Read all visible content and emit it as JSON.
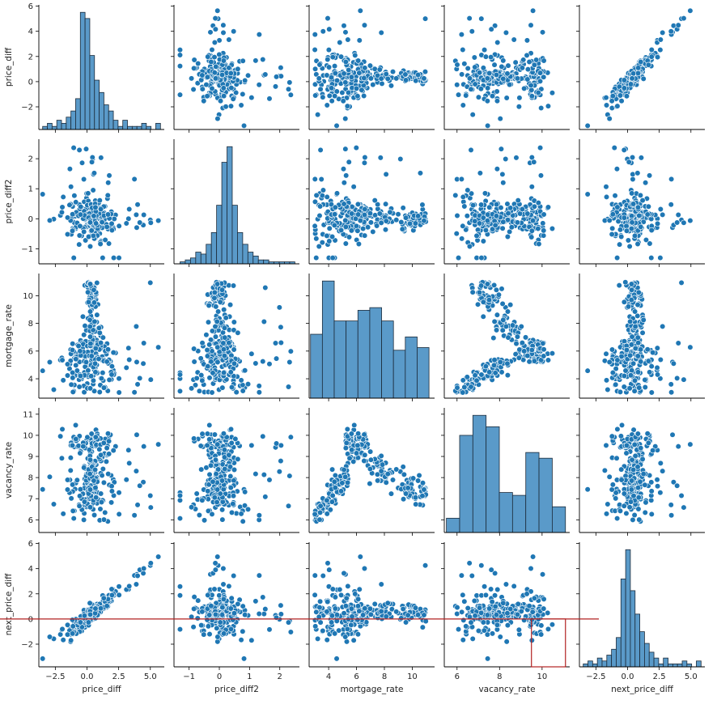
{
  "chart_data": {
    "type": "pairplot",
    "variables": [
      "price_diff",
      "price_diff2",
      "mortgage_rate",
      "vacancy_rate",
      "next_price_diff"
    ],
    "colors": {
      "marker": "#1f77b4",
      "hist_fill": "#5a9ac9",
      "hist_edge": "#1c2b3a",
      "marker_edge": "#ffffff",
      "annotation": "#b22222"
    },
    "axes": {
      "price_diff": {
        "range": [
          -3.8,
          6.1
        ],
        "ticks": [
          -2.5,
          0.0,
          2.5,
          5.0
        ],
        "tick_labels": [
          "−2.5",
          "0.0",
          "2.5",
          "5.0"
        ],
        "row_ticks": [
          -2,
          0,
          2,
          4,
          6
        ],
        "row_tick_labels": [
          "−2",
          "0",
          "2",
          "4",
          "6"
        ]
      },
      "price_diff2": {
        "range": [
          -1.5,
          2.65
        ],
        "ticks": [
          -1,
          0,
          1,
          2
        ],
        "tick_labels": [
          "−1",
          "0",
          "1",
          "2"
        ],
        "row_ticks": [
          -1,
          0,
          1,
          2
        ],
        "row_tick_labels": [
          "−1",
          "0",
          "1",
          "2"
        ]
      },
      "mortgage_rate": {
        "range": [
          2.6,
          11.6
        ],
        "ticks": [
          4,
          6,
          8,
          10
        ],
        "tick_labels": [
          "4",
          "6",
          "8",
          "10"
        ],
        "row_ticks": [
          4,
          6,
          8,
          10
        ],
        "row_tick_labels": [
          "4",
          "6",
          "8",
          "10"
        ]
      },
      "vacancy_rate": {
        "range": [
          5.4,
          11.3
        ],
        "ticks": [
          6,
          8,
          10
        ],
        "tick_labels": [
          "6",
          "8",
          "10"
        ],
        "row_ticks": [
          6,
          7,
          8,
          9,
          10,
          11
        ],
        "row_tick_labels": [
          "6",
          "7",
          "8",
          "9",
          "10",
          "11"
        ]
      },
      "next_price_diff": {
        "range": [
          -3.8,
          6.1
        ],
        "ticks": [
          -2.5,
          0.0,
          2.5,
          5.0
        ],
        "tick_labels": [
          "−2.5",
          "0.0",
          "2.5",
          "5.0"
        ],
        "row_ticks": [
          -2,
          0,
          2,
          4,
          6
        ],
        "row_tick_labels": [
          "−2",
          "0",
          "2",
          "4",
          "6"
        ]
      }
    },
    "histograms": {
      "price_diff": {
        "bins": [
          -3.5,
          5.8
        ],
        "counts": [
          1,
          2,
          1,
          3,
          2,
          4,
          6,
          10,
          38,
          36,
          24,
          16,
          12,
          8,
          6,
          3,
          1,
          3,
          1,
          1,
          1,
          2,
          1,
          0,
          2
        ]
      },
      "price_diff2": {
        "bins": [
          -1.3,
          2.5
        ],
        "counts": [
          1,
          2,
          3,
          6,
          5,
          10,
          16,
          30,
          52,
          60,
          30,
          16,
          10,
          6,
          4,
          2,
          2,
          1,
          1,
          1,
          1,
          1
        ]
      },
      "mortgage_rate": {
        "bins": [
          2.7,
          11.2
        ],
        "counts": [
          24,
          44,
          29,
          29,
          33,
          34,
          29,
          18,
          23,
          19
        ]
      },
      "vacancy_rate": {
        "bins": [
          5.5,
          11.1
        ],
        "counts": [
          5,
          34,
          41,
          37,
          14,
          13,
          28,
          26,
          9
        ]
      },
      "next_price_diff": {
        "bins": [
          -3.5,
          5.8
        ],
        "counts": [
          1,
          2,
          1,
          3,
          2,
          4,
          6,
          10,
          30,
          40,
          26,
          18,
          12,
          8,
          5,
          3,
          1,
          3,
          1,
          1,
          1,
          2,
          1,
          0,
          2
        ]
      }
    },
    "annotations": [
      {
        "type": "hline",
        "row": "next_price_diff",
        "y": 0
      },
      {
        "type": "rect",
        "row": "next_price_diff",
        "col": "vacancy_rate",
        "x0": 9.5,
        "x1": 11.1,
        "y0": -3.8,
        "y1": 0
      }
    ]
  }
}
